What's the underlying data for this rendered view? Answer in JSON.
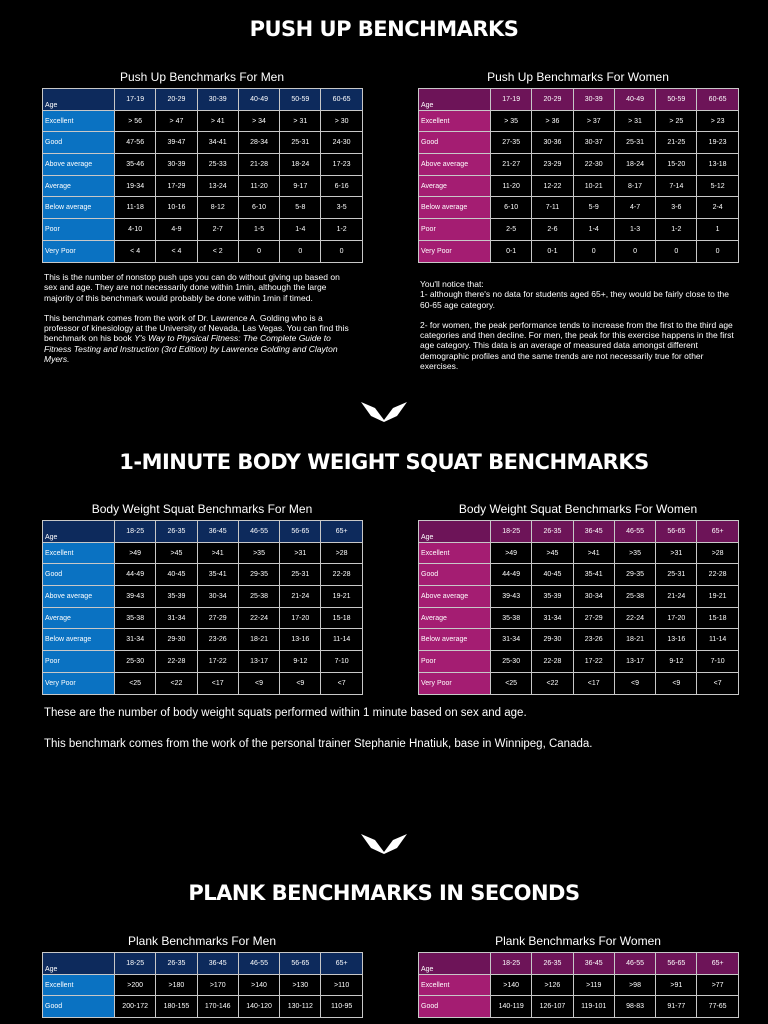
{
  "pushup": {
    "title": "PUSH UP BENCHMARKS",
    "men": {
      "caption": "Push Up Benchmarks For Men",
      "header": [
        "Age",
        "17-19",
        "20-29",
        "30-39",
        "40-49",
        "50-59",
        "60-65"
      ],
      "rows": [
        [
          "Excellent",
          "> 56",
          "> 47",
          "> 41",
          "> 34",
          "> 31",
          "> 30"
        ],
        [
          "Good",
          "47-56",
          "39-47",
          "34-41",
          "28-34",
          "25-31",
          "24-30"
        ],
        [
          "Above average",
          "35-46",
          "30-39",
          "25-33",
          "21-28",
          "18-24",
          "17-23"
        ],
        [
          "Average",
          "19-34",
          "17-29",
          "13-24",
          "11-20",
          "9-17",
          "6-16"
        ],
        [
          "Below average",
          "11-18",
          "10-16",
          "8-12",
          "6-10",
          "5-8",
          "3-5"
        ],
        [
          "Poor",
          "4-10",
          "4-9",
          "2-7",
          "1-5",
          "1-4",
          "1-2"
        ],
        [
          "Very Poor",
          "< 4",
          "< 4",
          "< 2",
          "0",
          "0",
          "0"
        ]
      ]
    },
    "women": {
      "caption": "Push Up Benchmarks For Women",
      "header": [
        "Age",
        "17-19",
        "20-29",
        "30-39",
        "40-49",
        "50-59",
        "60-65"
      ],
      "rows": [
        [
          "Excellent",
          "> 35",
          "> 36",
          "> 37",
          "> 31",
          "> 25",
          "> 23"
        ],
        [
          "Good",
          "27-35",
          "30-36",
          "30-37",
          "25-31",
          "21-25",
          "19-23"
        ],
        [
          "Above average",
          "21-27",
          "23-29",
          "22-30",
          "18-24",
          "15-20",
          "13-18"
        ],
        [
          "Average",
          "11-20",
          "12-22",
          "10-21",
          "8-17",
          "7-14",
          "5-12"
        ],
        [
          "Below average",
          "6-10",
          "7-11",
          "5-9",
          "4-7",
          "3-6",
          "2-4"
        ],
        [
          "Poor",
          "2-5",
          "2-6",
          "1-4",
          "1-3",
          "1-2",
          "1"
        ],
        [
          "Very Poor",
          "0-1",
          "0-1",
          "0",
          "0",
          "0",
          "0"
        ]
      ]
    },
    "left_text_1": "This is the number of nonstop push ups you can do without giving up based on sex and age. They are not necessarily done within 1min, although the large majority of this benchmark would probably be done within 1min if timed.",
    "left_text_2a": "This benchmark comes from the work of Dr. Lawrence A. Golding who is a professor of kinesiology at the University of Nevada, Las Vegas. You can find this benchmark on his book ",
    "left_text_2b": "Y's Way to Physical Fitness: The Complete Guide to Fitness Testing and Instruction (3rd Edition) by Lawrence Golding and Clayton Myers.",
    "right_text_1": "You'll notice that:",
    "right_text_2": "1- although there's no data for students aged 65+, they would be fairly close to the 60-65 age category.",
    "right_text_3": "2- for women, the peak performance tends to increase from the first to the third age categories and then decline. For men, the peak for this exercise happens in the first age category. This data is an average of measured data amongst different demographic profiles and the same trends are not necessarily true for other exercises."
  },
  "squat": {
    "title": "1-MINUTE BODY WEIGHT SQUAT BENCHMARKS",
    "men": {
      "caption": "Body Weight Squat Benchmarks For Men",
      "header": [
        "Age",
        "18-25",
        "26-35",
        "36-45",
        "46-55",
        "56-65",
        "65+"
      ],
      "rows": [
        [
          "Excellent",
          ">49",
          ">45",
          ">41",
          ">35",
          ">31",
          ">28"
        ],
        [
          "Good",
          "44-49",
          "40-45",
          "35-41",
          "29-35",
          "25-31",
          "22-28"
        ],
        [
          "Above average",
          "39-43",
          "35-39",
          "30-34",
          "25-38",
          "21-24",
          "19-21"
        ],
        [
          "Average",
          "35-38",
          "31-34",
          "27-29",
          "22-24",
          "17-20",
          "15-18"
        ],
        [
          "Below average",
          "31-34",
          "29-30",
          "23-26",
          "18-21",
          "13-16",
          "11-14"
        ],
        [
          "Poor",
          "25-30",
          "22-28",
          "17-22",
          "13-17",
          "9-12",
          "7-10"
        ],
        [
          "Very Poor",
          "<25",
          "<22",
          "<17",
          "<9",
          "<9",
          "<7"
        ]
      ]
    },
    "women": {
      "caption": "Body Weight Squat Benchmarks For Women",
      "header": [
        "Age",
        "18-25",
        "26-35",
        "36-45",
        "46-55",
        "56-65",
        "65+"
      ],
      "rows": [
        [
          "Excellent",
          ">49",
          ">45",
          ">41",
          ">35",
          ">31",
          ">28"
        ],
        [
          "Good",
          "44-49",
          "40-45",
          "35-41",
          "29-35",
          "25-31",
          "22-28"
        ],
        [
          "Above average",
          "39-43",
          "35-39",
          "30-34",
          "25-38",
          "21-24",
          "19-21"
        ],
        [
          "Average",
          "35-38",
          "31-34",
          "27-29",
          "22-24",
          "17-20",
          "15-18"
        ],
        [
          "Below average",
          "31-34",
          "29-30",
          "23-26",
          "18-21",
          "13-16",
          "11-14"
        ],
        [
          "Poor",
          "25-30",
          "22-28",
          "17-22",
          "13-17",
          "9-12",
          "7-10"
        ],
        [
          "Very Poor",
          "<25",
          "<22",
          "<17",
          "<9",
          "<9",
          "<7"
        ]
      ]
    },
    "text_1": "These are the number of body weight squats performed within 1 minute based on sex and age.",
    "text_2": "This benchmark comes from the work of the personal trainer Stephanie Hnatiuk, base in Winnipeg, Canada."
  },
  "plank": {
    "title": "PLANK BENCHMARKS IN SECONDS",
    "men": {
      "caption": "Plank Benchmarks For Men",
      "header": [
        "Age",
        "18-25",
        "26-35",
        "36-45",
        "46-55",
        "56-65",
        "65+"
      ],
      "rows": [
        [
          "Excellent",
          ">200",
          ">180",
          ">170",
          ">140",
          ">130",
          ">110"
        ],
        [
          "Good",
          "200-172",
          "180-155",
          "170-146",
          "140-120",
          "130-112",
          "110-95"
        ]
      ]
    },
    "women": {
      "caption": "Plank Benchmarks For Women",
      "header": [
        "Age",
        "18-25",
        "26-35",
        "36-45",
        "46-55",
        "56-65",
        "65+"
      ],
      "rows": [
        [
          "Excellent",
          ">140",
          ">126",
          ">119",
          ">98",
          ">91",
          ">77"
        ],
        [
          "Good",
          "140-119",
          "126-107",
          "119-101",
          "98-83",
          "91-77",
          "77-65"
        ]
      ]
    }
  },
  "colors": {
    "men_accent": "#0a72c2",
    "men_header": "#0d2a5c",
    "women_accent": "#a41d72",
    "women_header": "#6d1458",
    "background": "#000000"
  },
  "icons": {
    "divider": "chevron-logo-icon"
  }
}
